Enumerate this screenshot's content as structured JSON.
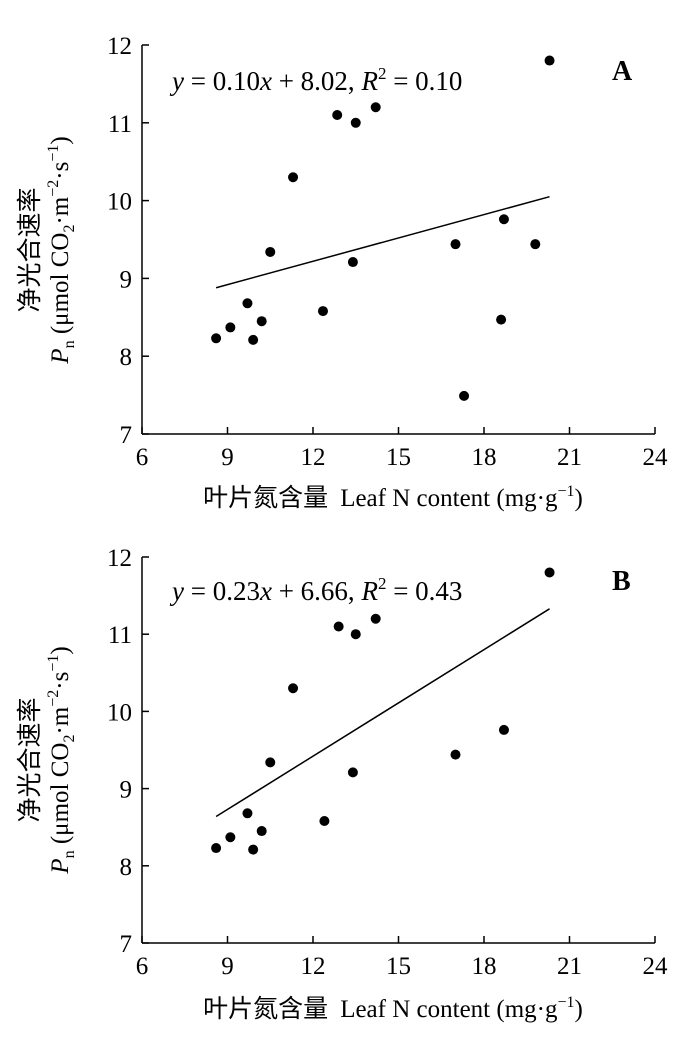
{
  "chart_data": [
    {
      "type": "scatter",
      "panel_label": "A",
      "equation": {
        "lhs": "y",
        "eq1": " = 0.10",
        "x": "x",
        "rest": " + 8.02, ",
        "r": "R",
        "r_exp": "2",
        "r_val": " = 0.10"
      },
      "x_ticks": [
        "6",
        "9",
        "12",
        "15",
        "18",
        "21",
        "24"
      ],
      "y_ticks": [
        "7",
        "8",
        "9",
        "10",
        "11",
        "12"
      ],
      "xlim": [
        6,
        24
      ],
      "ylim": [
        7,
        12
      ],
      "xlabel": {
        "zh": "叶片氮含量",
        "en": "Leaf N content (mg·g",
        "sup": "−1",
        "close": ")"
      },
      "ylabel": {
        "zh": "净光合速率",
        "symbol": "P",
        "symbol_sub": "n",
        "unit_a": " (μmol CO",
        "sub2": "2",
        "unit_b": "·m",
        "sup1": "−2",
        "unit_c": "·s",
        "sup2": "−1",
        "unit_d": ")"
      },
      "points": [
        [
          8.6,
          8.23
        ],
        [
          9.1,
          8.37
        ],
        [
          9.7,
          8.68
        ],
        [
          9.9,
          8.21
        ],
        [
          10.2,
          8.45
        ],
        [
          10.5,
          9.34
        ],
        [
          11.3,
          10.3
        ],
        [
          12.35,
          8.58
        ],
        [
          12.85,
          11.1
        ],
        [
          13.4,
          9.21
        ],
        [
          13.5,
          11.0
        ],
        [
          14.2,
          11.2
        ],
        [
          17.0,
          9.44
        ],
        [
          17.3,
          7.49
        ],
        [
          18.6,
          8.47
        ],
        [
          18.7,
          9.76
        ],
        [
          19.8,
          9.44
        ],
        [
          20.3,
          11.8
        ]
      ],
      "fit": {
        "slope": 0.1,
        "intercept": 8.02,
        "x_range": [
          8.6,
          20.3
        ]
      },
      "grid": false,
      "axis_frame": "left-bottom"
    },
    {
      "type": "scatter",
      "panel_label": "B",
      "equation": {
        "lhs": "y",
        "eq1": " = 0.23",
        "x": "x",
        "rest": " + 6.66, ",
        "r": "R",
        "r_exp": "2",
        "r_val": " = 0.43"
      },
      "x_ticks": [
        "6",
        "9",
        "12",
        "15",
        "18",
        "21",
        "24"
      ],
      "y_ticks": [
        "7",
        "8",
        "9",
        "10",
        "11",
        "12"
      ],
      "xlim": [
        6,
        24
      ],
      "ylim": [
        7,
        12
      ],
      "xlabel": {
        "zh": "叶片氮含量",
        "en": "Leaf N content (mg·g",
        "sup": "−1",
        "close": ")"
      },
      "ylabel": {
        "zh": "净光合速率",
        "symbol": "P",
        "symbol_sub": "n",
        "unit_a": " (μmol CO",
        "sub2": "2",
        "unit_b": "·m",
        "sup1": "−2",
        "unit_c": "·s",
        "sup2": "−1",
        "unit_d": ")"
      },
      "points": [
        [
          8.6,
          8.23
        ],
        [
          9.1,
          8.37
        ],
        [
          9.7,
          8.68
        ],
        [
          9.9,
          8.21
        ],
        [
          10.2,
          8.45
        ],
        [
          10.5,
          9.34
        ],
        [
          11.3,
          10.3
        ],
        [
          12.4,
          8.58
        ],
        [
          12.9,
          11.1
        ],
        [
          13.4,
          9.21
        ],
        [
          13.5,
          11.0
        ],
        [
          14.2,
          11.2
        ],
        [
          17.0,
          9.44
        ],
        [
          18.7,
          9.76
        ],
        [
          20.3,
          11.8
        ]
      ],
      "fit": {
        "slope": 0.23,
        "intercept": 6.66,
        "x_range": [
          8.6,
          20.3
        ]
      },
      "grid": false,
      "axis_frame": "left-bottom"
    }
  ]
}
